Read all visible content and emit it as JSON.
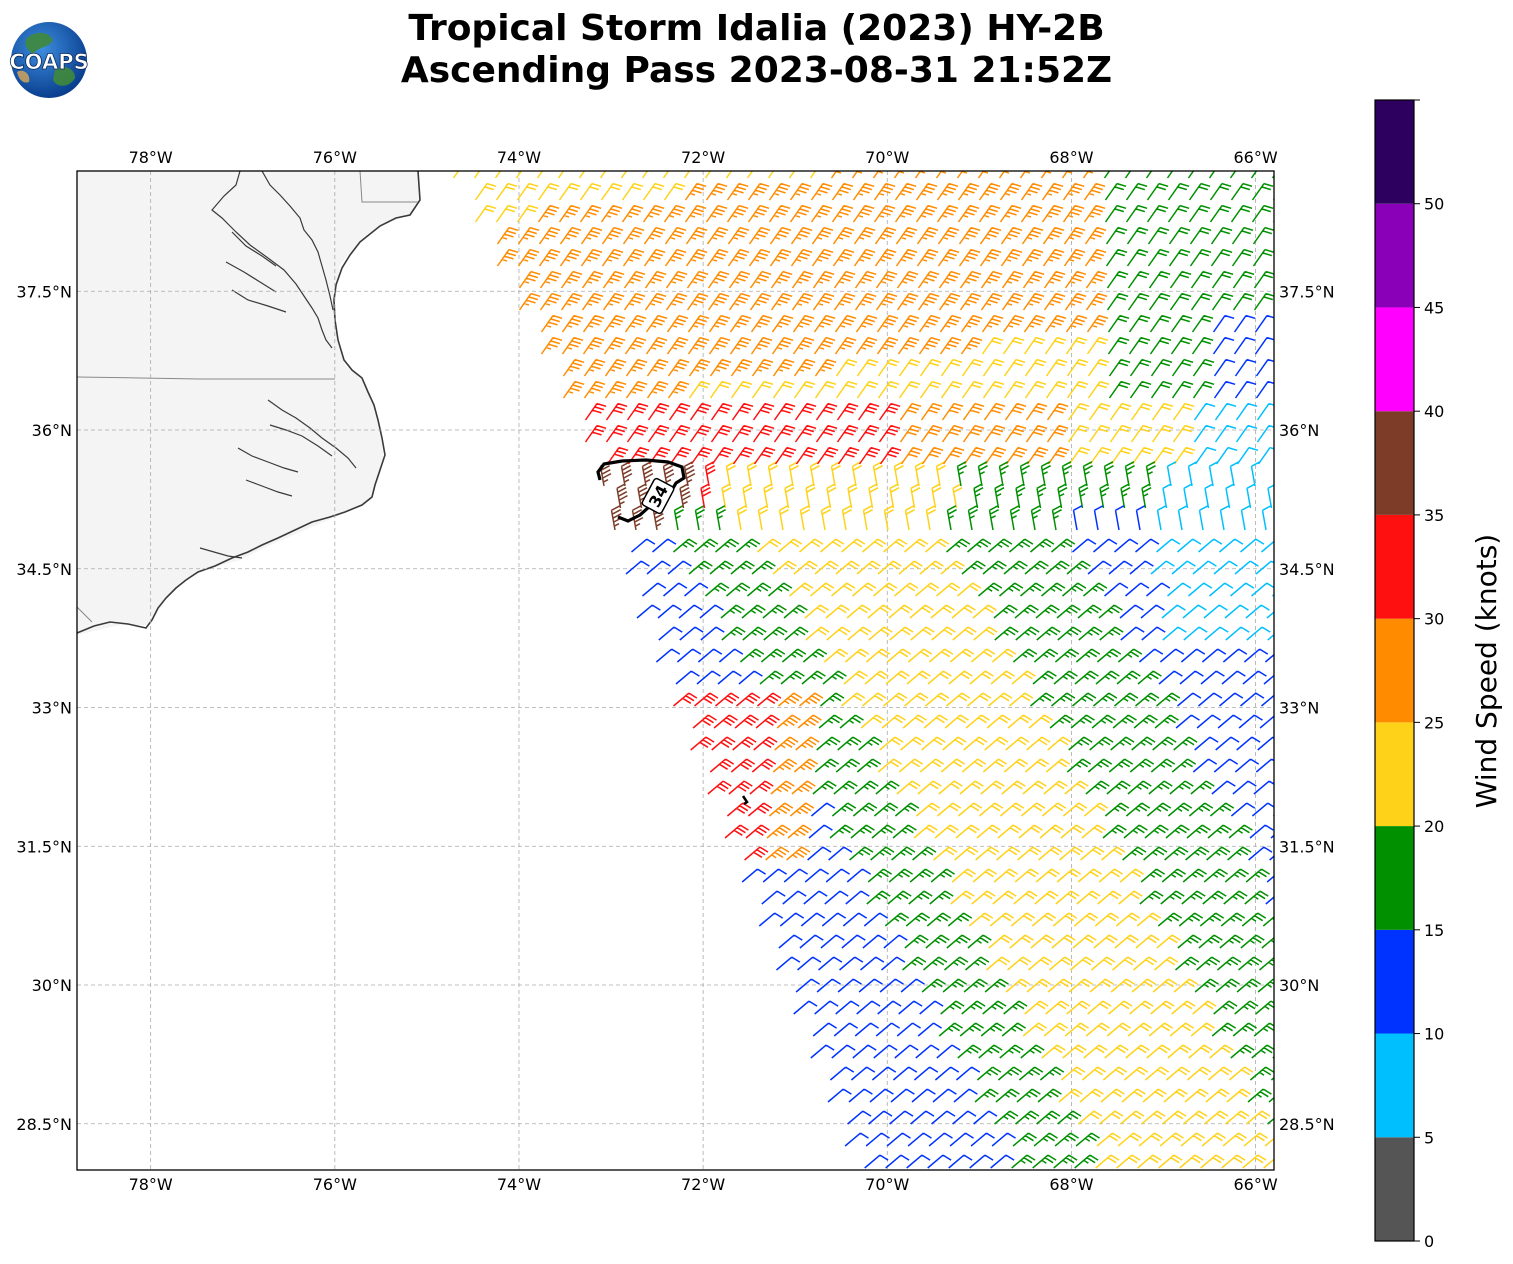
{
  "title_line1": "Tropical Storm Idalia (2023) HY-2B",
  "title_line2": "Ascending Pass 2023-08-31 21:52Z",
  "logo_text": "COAPS",
  "map": {
    "lon_range": [
      -78.8,
      -65.8
    ],
    "lat_range": [
      28.0,
      38.8
    ],
    "lon_ticks": [
      "78°W",
      "76°W",
      "74°W",
      "72°W",
      "70°W",
      "68°W",
      "66°W"
    ],
    "lon_tick_values": [
      -78,
      -76,
      -74,
      -72,
      -70,
      -68,
      -66
    ],
    "lat_ticks": [
      "28.5°N",
      "30°N",
      "31.5°N",
      "33°N",
      "34.5°N",
      "36°N",
      "37.5°N"
    ],
    "lat_tick_values": [
      28.5,
      30,
      31.5,
      33,
      34.5,
      36,
      37.5
    ],
    "contour_label": "34",
    "contour_value_knots": 34,
    "grid": true
  },
  "colorbar": {
    "label": "Wind Speed (knots)",
    "ticks": [
      "0",
      "5",
      "10",
      "15",
      "20",
      "25",
      "30",
      "35",
      "40",
      "45",
      "50"
    ],
    "bins": [
      {
        "from": 0,
        "to": 5,
        "color": "#555555"
      },
      {
        "from": 5,
        "to": 10,
        "color": "#00bfff"
      },
      {
        "from": 10,
        "to": 15,
        "color": "#0033ff"
      },
      {
        "from": 15,
        "to": 20,
        "color": "#009000"
      },
      {
        "from": 20,
        "to": 25,
        "color": "#ffd21a"
      },
      {
        "from": 25,
        "to": 30,
        "color": "#ff8c00"
      },
      {
        "from": 30,
        "to": 35,
        "color": "#ff1010"
      },
      {
        "from": 35,
        "to": 40,
        "color": "#7d3c28"
      },
      {
        "from": 40,
        "to": 45,
        "color": "#ff00ff"
      },
      {
        "from": 45,
        "to": 50,
        "color": "#8a00b8"
      },
      {
        "from": 50,
        "to": 55,
        "color": "#2d0060"
      }
    ]
  }
}
